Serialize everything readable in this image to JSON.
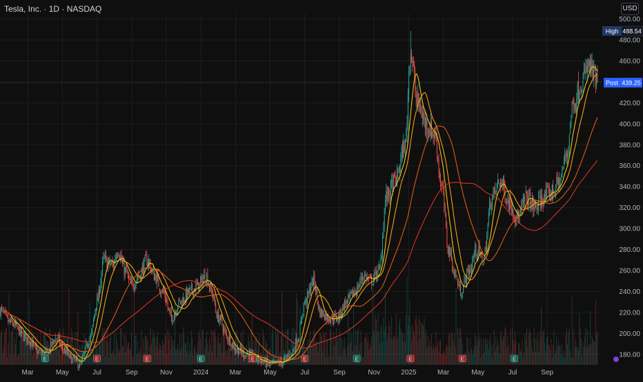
{
  "header": {
    "title": "Tesla, Inc. · 1D · NASDAQ",
    "currency": "USD"
  },
  "labels": {
    "high_tag": "High",
    "high_value": "488.54",
    "post_tag": "Post",
    "post_value": "439.25"
  },
  "colors": {
    "background": "#0f0f0f",
    "grid": "#1e1e1e",
    "up": "#26a69a",
    "down": "#ef5350",
    "ma_fast": "#f0c419",
    "ma_mid": "#f59f1b",
    "ma_slow": "#e05a18",
    "ma_long": "#d63324",
    "post_badge": "#2962ff",
    "high_badge": "#1e3a66",
    "earnings_up": "#1b5e4e",
    "earnings_down": "#8e2a2a"
  },
  "chart_data": {
    "type": "candlestick",
    "title": "",
    "ylim": [
      170,
      505
    ],
    "y_ticks": [
      180,
      200,
      220,
      240,
      260,
      280,
      300,
      320,
      340,
      360,
      380,
      400,
      420,
      440,
      460,
      480,
      500
    ],
    "x_tick_labels": [
      "Mar",
      "May",
      "Jul",
      "Sep",
      "Nov",
      "2024",
      "Mar",
      "May",
      "Jul",
      "Sep",
      "Nov",
      "2025",
      "Mar",
      "May",
      "Jul",
      "Sep"
    ],
    "x_tick_months": [
      0,
      2,
      4,
      6,
      8,
      10,
      12,
      14,
      16,
      18,
      20,
      22,
      24,
      26,
      28,
      30
    ],
    "start_month_offset": -1.6,
    "end_month_offset": 32.9,
    "price_path": [
      [
        -1.6,
        222
      ],
      [
        -1,
        210
      ],
      [
        0,
        195
      ],
      [
        0.6,
        182
      ],
      [
        1,
        180
      ],
      [
        1.7,
        196
      ],
      [
        2,
        185
      ],
      [
        2.6,
        175
      ],
      [
        3,
        170
      ],
      [
        3.6,
        195
      ],
      [
        4,
        230
      ],
      [
        4.4,
        270
      ],
      [
        4.9,
        265
      ],
      [
        5.2,
        280
      ],
      [
        5.6,
        260
      ],
      [
        6,
        245
      ],
      [
        6.4,
        255
      ],
      [
        6.9,
        270
      ],
      [
        7.3,
        255
      ],
      [
        7.8,
        240
      ],
      [
        8.3,
        215
      ],
      [
        8.8,
        230
      ],
      [
        9.4,
        240
      ],
      [
        9.8,
        245
      ],
      [
        10.3,
        255
      ],
      [
        10.6,
        240
      ],
      [
        11,
        215
      ],
      [
        11.6,
        195
      ],
      [
        12,
        185
      ],
      [
        12.6,
        180
      ],
      [
        13.3,
        175
      ],
      [
        14,
        170
      ],
      [
        14.6,
        172
      ],
      [
        15.2,
        180
      ],
      [
        15.6,
        195
      ],
      [
        16,
        230
      ],
      [
        16.5,
        250
      ],
      [
        16.9,
        220
      ],
      [
        17.4,
        215
      ],
      [
        17.9,
        215
      ],
      [
        18.4,
        230
      ],
      [
        18.9,
        240
      ],
      [
        19.4,
        255
      ],
      [
        19.8,
        250
      ],
      [
        20.3,
        260
      ],
      [
        20.7,
        330
      ],
      [
        21.2,
        345
      ],
      [
        21.8,
        380
      ],
      [
        22.1,
        470
      ],
      [
        22.5,
        420
      ],
      [
        23,
        400
      ],
      [
        23.5,
        390
      ],
      [
        23.9,
        340
      ],
      [
        24.3,
        280
      ],
      [
        24.7,
        255
      ],
      [
        25,
        240
      ],
      [
        25.5,
        260
      ],
      [
        25.9,
        280
      ],
      [
        26.3,
        270
      ],
      [
        26.8,
        330
      ],
      [
        27.3,
        345
      ],
      [
        27.8,
        325
      ],
      [
        28.3,
        310
      ],
      [
        28.8,
        330
      ],
      [
        29.3,
        320
      ],
      [
        29.8,
        330
      ],
      [
        30.3,
        335
      ],
      [
        30.7,
        345
      ],
      [
        31.1,
        370
      ],
      [
        31.5,
        420
      ],
      [
        32,
        440
      ],
      [
        32.4,
        455
      ],
      [
        32.9,
        439
      ]
    ],
    "high": 488.54,
    "post_price": 439.25,
    "earnings_months": [
      1.0,
      4.0,
      6.9,
      10.0,
      13.0,
      16.0,
      19.0,
      22.1,
      25.1,
      28.1
    ]
  }
}
